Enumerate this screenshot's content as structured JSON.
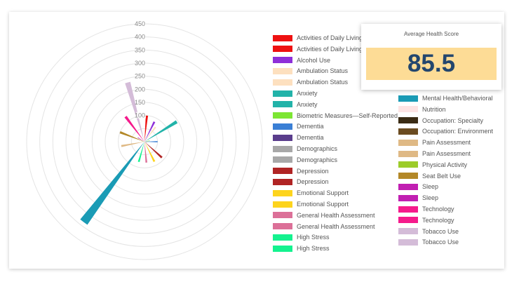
{
  "card": {
    "title": "Average Health Score",
    "value": "85.5",
    "box_color": "#fddc96",
    "value_color": "#23466e"
  },
  "chart_data": {
    "type": "polar-bar",
    "radial_ticks": [
      "100",
      "150",
      "200",
      "250",
      "300",
      "350",
      "400",
      "450"
    ],
    "rmax": 450,
    "grid": true,
    "legend_position": "right",
    "series": [
      {
        "name": "Activities of Daily Living",
        "value": 100,
        "color": "#ee1111"
      },
      {
        "name": "Activities of Daily Living",
        "value": 0,
        "color": "#ee1111"
      },
      {
        "name": "Alcohol Use",
        "value": 85,
        "color": "#8e2fd9"
      },
      {
        "name": "Ambulation Status",
        "value": 70,
        "color": "#fde0bf"
      },
      {
        "name": "Ambulation Status",
        "value": 0,
        "color": "#fde0bf"
      },
      {
        "name": "Anxiety",
        "value": 145,
        "color": "#22b3a9"
      },
      {
        "name": "Anxiety",
        "value": 0,
        "color": "#22b3a9"
      },
      {
        "name": "Biometric Measures—Self-Reported",
        "value": 20,
        "color": "#7de633"
      },
      {
        "name": "Dementia",
        "value": 50,
        "color": "#3a7fd5"
      },
      {
        "name": "Dementia",
        "value": 10,
        "color": "#5a3d8c"
      },
      {
        "name": "Demographics",
        "value": 10,
        "color": "#a8a8a8"
      },
      {
        "name": "Demographics",
        "value": 0,
        "color": "#a8a8a8"
      },
      {
        "name": "Depression",
        "value": 90,
        "color": "#b02424"
      },
      {
        "name": "Depression",
        "value": 0,
        "color": "#b02424"
      },
      {
        "name": "Emotional Support",
        "value": 85,
        "color": "#fdd41d"
      },
      {
        "name": "Emotional Support",
        "value": 0,
        "color": "#fdd41d"
      },
      {
        "name": "General Health Assessment",
        "value": 80,
        "color": "#dc7098"
      },
      {
        "name": "General Health Assessment",
        "value": 0,
        "color": "#dc7098"
      },
      {
        "name": "High Stress",
        "value": 80,
        "color": "#14f28f"
      },
      {
        "name": "High Stress",
        "value": 0,
        "color": "#14f28f"
      },
      {
        "name": "Mental Health/Behavioral",
        "value": 385,
        "color": "#1a9bb5"
      },
      {
        "name": "Nutrition",
        "value": 0,
        "color": "#fde4e4"
      },
      {
        "name": "Occupation: Specialty",
        "value": 0,
        "color": "#3a2b14"
      },
      {
        "name": "Occupation: Environment",
        "value": 0,
        "color": "#6b4b20"
      },
      {
        "name": "Pain Assessment",
        "value": 90,
        "color": "#dfb985"
      },
      {
        "name": "Pain Assessment",
        "value": 0,
        "color": "#dfb985"
      },
      {
        "name": "Physical Activity",
        "value": 10,
        "color": "#9ccc2a"
      },
      {
        "name": "Seat Belt Use",
        "value": 100,
        "color": "#b38828"
      },
      {
        "name": "Sleep",
        "value": 30,
        "color": "#c11fb2"
      },
      {
        "name": "Sleep",
        "value": 0,
        "color": "#c11fb2"
      },
      {
        "name": "Technology",
        "value": 120,
        "color": "#f51a8c"
      },
      {
        "name": "Technology",
        "value": 0,
        "color": "#f51a8c"
      },
      {
        "name": "Tobacco Use",
        "value": 235,
        "color": "#d4bcd8"
      },
      {
        "name": "Tobacco Use",
        "value": 0,
        "color": "#d4bcd8"
      }
    ]
  }
}
